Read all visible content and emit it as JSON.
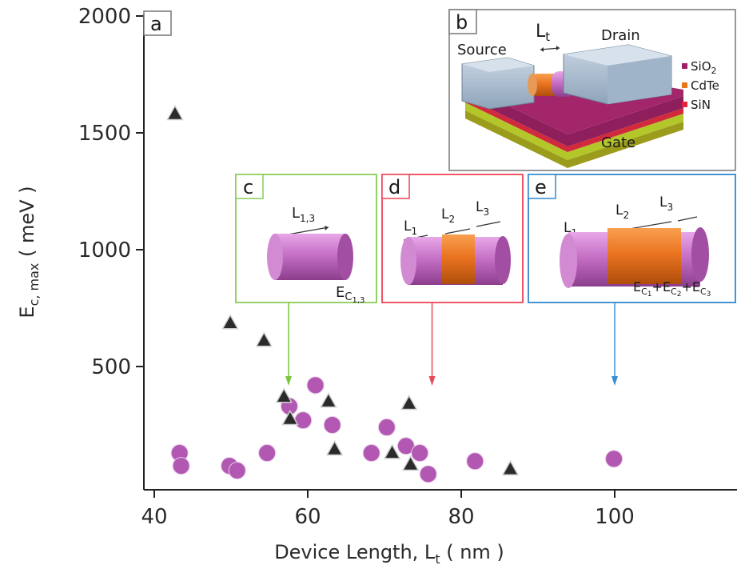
{
  "chart_data": {
    "type": "scatter",
    "xlabel_main": "Device Length, L",
    "xlabel_sub": "t",
    "xlabel_unit": " ( nm )",
    "ylabel_main": "E",
    "ylabel_sub": "c, max",
    "ylabel_unit": " ( meV )",
    "xlim": [
      38,
      115
    ],
    "ylim": [
      -50,
      2050
    ],
    "x_ticks": [
      40,
      60,
      80,
      100
    ],
    "y_ticks": [
      500,
      1000,
      1500,
      2000
    ],
    "grid": false,
    "series": [
      {
        "marker": "circle",
        "color": "#b257b2",
        "points": [
          [
            43.3,
            130
          ],
          [
            43.5,
            75
          ],
          [
            49.8,
            75
          ],
          [
            50.8,
            55
          ],
          [
            54.7,
            130
          ],
          [
            57.6,
            330
          ],
          [
            59.4,
            270
          ],
          [
            61.0,
            420
          ],
          [
            63.2,
            250
          ],
          [
            68.3,
            130
          ],
          [
            70.3,
            240
          ],
          [
            72.8,
            160
          ],
          [
            74.6,
            130
          ],
          [
            75.7,
            40
          ],
          [
            81.8,
            95
          ],
          [
            99.9,
            105
          ]
        ]
      },
      {
        "marker": "triangle",
        "color": "#2b2b2b",
        "points": [
          [
            42.7,
            1580
          ],
          [
            49.9,
            685
          ],
          [
            54.3,
            610
          ],
          [
            56.9,
            370
          ],
          [
            57.7,
            275
          ],
          [
            62.7,
            350
          ],
          [
            63.5,
            145
          ],
          [
            71.0,
            130
          ],
          [
            73.2,
            340
          ],
          [
            73.4,
            80
          ],
          [
            86.4,
            60
          ]
        ]
      }
    ]
  },
  "panels": {
    "a": "a",
    "b": "b",
    "c": "c",
    "d": "d",
    "e": "e"
  },
  "inset_b": {
    "source": "Source",
    "drain": "Drain",
    "gate": "Gate",
    "lt_main": "L",
    "lt_sub": "t",
    "legend": [
      {
        "label": "SiO",
        "sub": "2",
        "color": "#9e1d63"
      },
      {
        "label": "CdTe",
        "sub": "",
        "color": "#e8741c"
      },
      {
        "label": "SiN",
        "sub": "",
        "color": "#e8223a"
      }
    ]
  },
  "inset_c": {
    "border": "#88cc55",
    "l_main": "L",
    "l_sub": "1,3",
    "e_main": "E",
    "e_sub": "C",
    "e_sub2": "1,3"
  },
  "inset_d": {
    "border": "#ee4455",
    "l1": "L",
    "l1_sub": "1",
    "l2": "L",
    "l2_sub": "2",
    "l3": "L",
    "l3_sub": "3"
  },
  "inset_e": {
    "border": "#3388cc",
    "l1": "L",
    "l1_sub": "1",
    "l2": "L",
    "l2_sub": "2",
    "l3": "L",
    "l3_sub": "3",
    "ec": [
      "E",
      "C",
      "1",
      "+E",
      "C",
      "2",
      "+E",
      "C",
      "3"
    ]
  },
  "arrow_x_values": [
    57.5,
    76.2,
    100
  ],
  "colors": {
    "pink": "#c877c8",
    "orange": "#e8731e",
    "arrow_green": "#7cc63a",
    "arrow_red": "#e8485a",
    "arrow_blue": "#3a8fd0"
  }
}
